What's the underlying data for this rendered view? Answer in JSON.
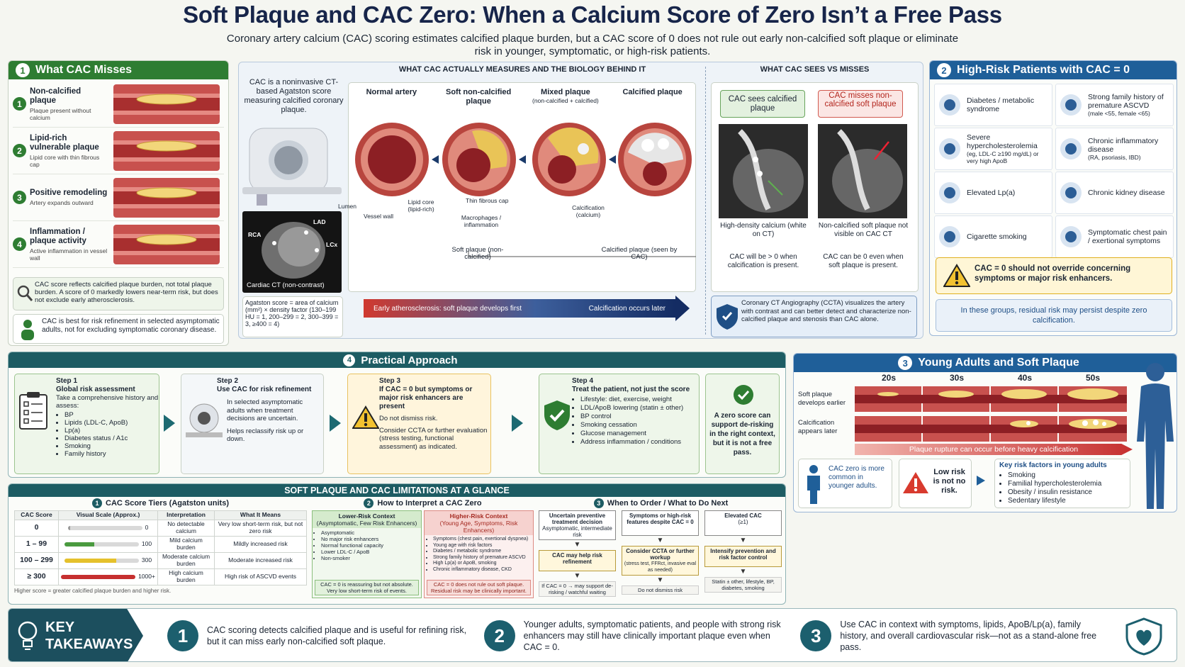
{
  "header": {
    "title": "Soft Plaque and CAC Zero: When a Calcium Score of Zero Isn’t a Free Pass",
    "subtitle": "Coronary artery calcium (CAC) scoring estimates calcified plaque burden, but a CAC score of 0 does not rule out early non-calcified soft plaque or eliminate risk in younger, symptomatic, or high-risk patients."
  },
  "what_cac_misses": {
    "number": "1",
    "title": "What CAC Misses",
    "items": [
      {
        "number": "1",
        "title": "Non-calcified plaque",
        "desc": "Plaque present without calcium"
      },
      {
        "number": "2",
        "title": "Lipid-rich vulnerable plaque",
        "desc": "Lipid core with thin fibrous cap"
      },
      {
        "number": "3",
        "title": "Positive remodeling",
        "desc": "Artery expands outward"
      },
      {
        "number": "4",
        "title": "Inflammation / plaque activity",
        "desc": "Active inflammation in vessel wall"
      }
    ],
    "note1": "CAC score reflects calcified plaque burden, not total plaque burden. A score of 0 markedly lowers near-term risk, but does not exclude early atherosclerosis.",
    "note2": "CAC is best for risk refinement in selected asymptomatic adults, not for excluding symptomatic coronary disease."
  },
  "biology": {
    "heading": "WHAT CAC ACTUALLY MEASURES AND THE BIOLOGY BEHIND IT",
    "ct_desc": "CAC is a noninvasive CT-based Agatston score measuring calcified coronary plaque.",
    "ct_labels": [
      "LAD",
      "RCA",
      "LCx"
    ],
    "ct_caption": "Cardiac CT (non-contrast)",
    "agatston": "Agatston score = area of calcium (mm²) × density factor (130–199 HU = 1, 200–299 = 2, 300–399 = 3, ≥400 = 4)",
    "stages": [
      {
        "title": "Normal artery"
      },
      {
        "title": "Soft non-calcified plaque"
      },
      {
        "title": "Mixed plaque",
        "sub": "(non-calcified + calcified)"
      },
      {
        "title": "Calcified plaque"
      }
    ],
    "annotations": [
      "Lumen",
      "Vessel wall",
      "Lipid core (lipid-rich)",
      "Thin fibrous cap",
      "Macrophages / inflammation",
      "Calcification (calcium)"
    ],
    "brackets": [
      "Soft plaque (non-calcified)",
      "Calcified plaque (seen by CAC)"
    ],
    "arrow": [
      "Early atherosclerosis: soft plaque develops first",
      "Calcification occurs later"
    ]
  },
  "sees_misses": {
    "heading": "WHAT CAC SEES VS MISSES",
    "sees": "CAC sees calcified plaque",
    "misses": "CAC misses non-calcified soft plaque",
    "left_caption": "High-density calcium (white on CT)",
    "left_note": "CAC will be > 0 when calcification is present.",
    "right_caption": "Non-calcified soft plaque not visible on CAC CT",
    "right_note": "CAC can be 0 even when soft plaque is present.",
    "ccta": "Coronary CT Angiography (CCTA) visualizes the artery with contrast and can better detect and characterize non-calcified plaque and stenosis than CAC alone."
  },
  "high_risk": {
    "number": "2",
    "title": "High-Risk Patients with CAC = 0",
    "items": [
      {
        "title": "Diabetes / metabolic syndrome"
      },
      {
        "title": "Strong family history of premature ASCVD",
        "sub": "(male <55, female <65)"
      },
      {
        "title": "Severe hypercholesterolemia",
        "sub": "(eg, LDL-C ≥190 mg/dL) or very high ApoB"
      },
      {
        "title": "Chronic inflammatory disease",
        "sub": "(RA, psoriasis, IBD)"
      },
      {
        "title": "Elevated Lp(a)"
      },
      {
        "title": "Chronic kidney disease"
      },
      {
        "title": "Cigarette smoking"
      },
      {
        "title": "Symptomatic chest pain / exertional symptoms"
      }
    ],
    "warning": "CAC = 0 should not override concerning symptoms or major risk enhancers.",
    "note": "In these groups, residual risk may persist despite zero calcification."
  },
  "young": {
    "number": "3",
    "title": "Young Adults and Soft Plaque",
    "ages": [
      "20s",
      "30s",
      "40s",
      "50s"
    ],
    "rows": [
      "Soft plaque develops earlier",
      "Calcification appears later"
    ],
    "banner": "Plaque rupture can occur before heavy calcification",
    "box1": "CAC zero is more common in younger adults.",
    "box2": "Low risk is not no risk.",
    "key_title": "Key risk factors in young adults",
    "key_bullets": [
      "Smoking",
      "Familial hypercholesterolemia",
      "Obesity / insulin resistance",
      "Sedentary lifestyle"
    ]
  },
  "practical": {
    "number": "4",
    "title": "Practical Approach",
    "steps": [
      {
        "label": "Step 1",
        "title": "Global risk assessment",
        "text": [
          "Take a comprehensive history and assess:"
        ],
        "bullets": [
          "BP",
          "Lipids (LDL-C, ApoB)",
          "Lp(a)",
          "Diabetes status / A1c",
          "Smoking",
          "Family history"
        ]
      },
      {
        "label": "Step 2",
        "title": "Use CAC for risk refinement",
        "text": [
          "In selected asymptomatic adults when treatment decisions are uncertain.",
          "Helps reclassify risk up or down."
        ]
      },
      {
        "label": "Step 3",
        "title": "If CAC = 0 but symptoms or major risk enhancers are present",
        "text": [
          "Do not dismiss risk.",
          "Consider CCTA or further evaluation (stress testing, functional assessment) as indicated."
        ]
      },
      {
        "label": "Step 4",
        "title": "Treat the patient, not just the score",
        "bullets": [
          "Lifestyle: diet, exercise, weight",
          "LDL/ApoB lowering (statin ± other)",
          "BP control",
          "Smoking cessation",
          "Glucose management",
          "Address inflammation / conditions"
        ]
      }
    ],
    "conclusion": "A zero score can support de-risking in the right context, but it is not a free pass."
  },
  "limitations": {
    "title": "SOFT PLAQUE AND CAC LIMITATIONS AT A GLANCE",
    "tiers": {
      "number": "1",
      "title": "CAC Score Tiers (Agatston units)",
      "columns": [
        "CAC Score",
        "Visual Scale (Approx.)",
        "Interpretation",
        "What It Means"
      ],
      "rows": [
        [
          "0",
          "0",
          "No detectable calcium",
          "Very low short-term risk, but not zero risk"
        ],
        [
          "1 – 99",
          "100",
          "Mild calcium burden",
          "Mildly increased risk"
        ],
        [
          "100 – 299",
          "300",
          "Moderate calcium burden",
          "Moderate increased risk"
        ],
        [
          "≥ 300",
          "1000+",
          "High calcium burden",
          "High risk of ASCVD events"
        ]
      ],
      "footnote": "Higher score = greater calcified plaque burden and higher risk."
    },
    "interpret": {
      "number": "2",
      "title": "How to Interpret a CAC Zero",
      "low": {
        "title": "Lower-Risk Context",
        "sub": "(Asymptomatic, Few Risk Enhancers)",
        "bullets": [
          "Asymptomatic",
          "No major risk enhancers",
          "Normal functional capacity",
          "Lower LDL-C / ApoB",
          "Non-smoker"
        ],
        "note": "CAC = 0 is reassuring but not absolute. Very low short-term risk of events."
      },
      "high": {
        "title": "Higher-Risk Context",
        "sub": "(Young Age, Symptoms, Risk Enhancers)",
        "bullets": [
          "Symptoms (chest pain, exertional dyspnea)",
          "Young age with risk factors",
          "Diabetes / metabolic syndrome",
          "Strong family history of premature ASCVD",
          "High Lp(a) or ApoB, smoking",
          "Chronic inflammatory disease, CKD"
        ],
        "note": "CAC = 0 does not rule out soft plaque. Residual risk may be clinically important."
      }
    },
    "when": {
      "number": "3",
      "title": "When to Order / What to Do Next",
      "cols": [
        {
          "box": "Uncertain preventive treatment decision",
          "sub": "Asymptomatic, intermediate risk",
          "result": "CAC may help risk refinement",
          "foot": "If CAC = 0 → may support de-risking / watchful waiting"
        },
        {
          "box": "Symptoms or high-risk features despite CAC = 0",
          "result": "Consider CCTA or further workup",
          "result_sub": "(stress test, FFRct, invasive eval as needed)",
          "foot": "Do not dismiss risk"
        },
        {
          "box": "Elevated CAC",
          "sub": "(≥1)",
          "result": "Intensify prevention and risk factor control",
          "foot": "Statin ± other, lifestyle, BP, diabetes, smoking"
        }
      ]
    }
  },
  "takeaways": {
    "title": "KEY TAKEAWAYS",
    "items": [
      {
        "number": "1",
        "text": "CAC scoring detects calcified plaque and is useful for refining risk, but it can miss early non-calcified soft plaque."
      },
      {
        "number": "2",
        "text": "Younger adults, symptomatic patients, and people with strong risk enhancers may still have clinically important plaque even when CAC = 0."
      },
      {
        "number": "3",
        "text": "Use CAC in context with symptoms, lipids, ApoB/Lp(a), family history, and overall cardiovascular risk—not as a stand-alone free pass."
      }
    ]
  }
}
